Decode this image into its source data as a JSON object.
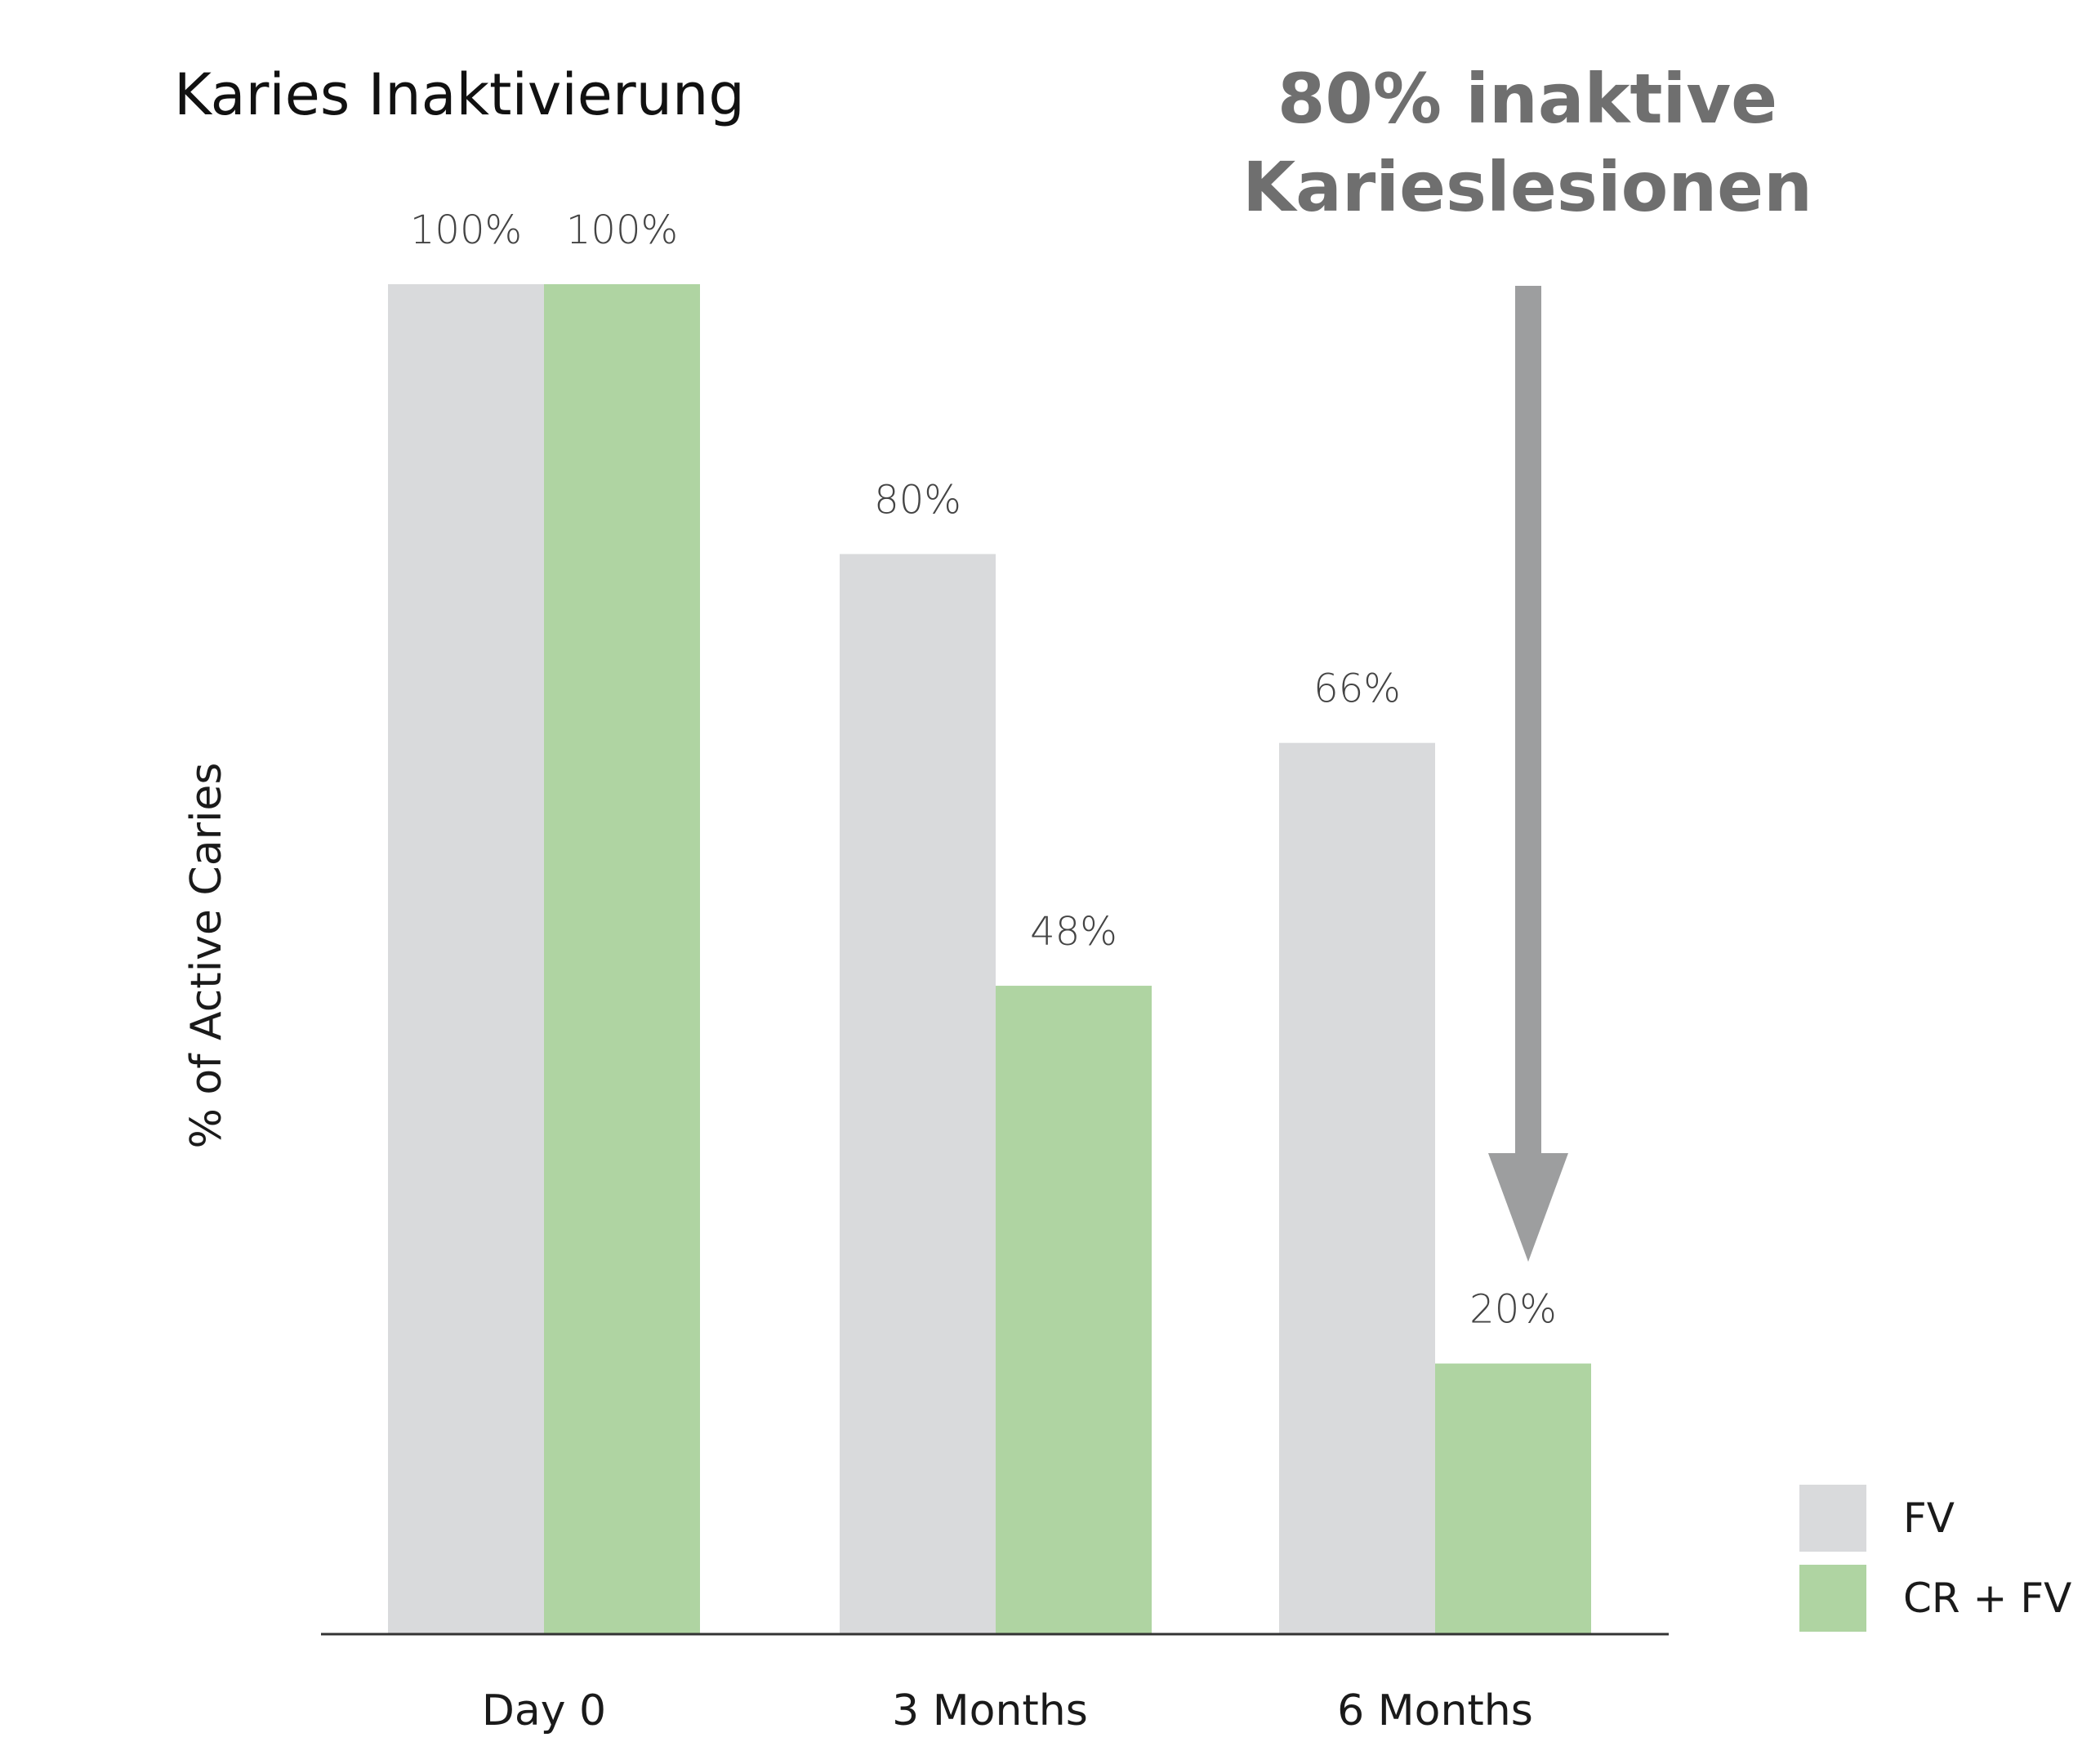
{
  "chart_data": {
    "type": "bar",
    "title": "Karies Inaktivierung",
    "annotation": {
      "lines": [
        "80% inaktive",
        "Karieslesionen"
      ],
      "color": "#6f6f6f",
      "arrow_color": "#9d9e9f"
    },
    "xlabel": "",
    "ylabel": "% of Active Caries",
    "categories": [
      "Day 0",
      "3 Months",
      "6 Months"
    ],
    "ylim": [
      0,
      100
    ],
    "grid": false,
    "legend_position": "bottom-right",
    "series": [
      {
        "name": "FV",
        "color": "#d9dadc",
        "values": [
          100,
          80,
          66
        ],
        "labels": [
          "100%",
          "80%",
          "66%"
        ]
      },
      {
        "name": "CR + FV",
        "color": "#afd4a2",
        "values": [
          100,
          48,
          20
        ],
        "labels": [
          "100%",
          "48%",
          "20%"
        ]
      }
    ],
    "axis_color": "#333333"
  }
}
